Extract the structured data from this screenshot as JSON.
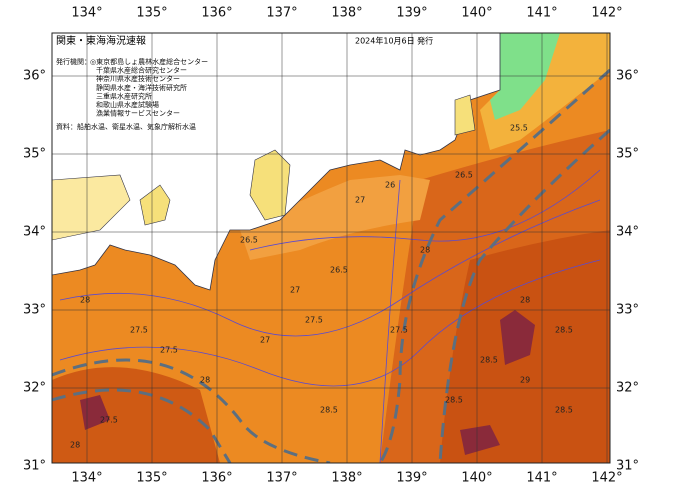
{
  "header": {
    "title": "関東・東海海況速報",
    "date": "2024年10月6日 発行"
  },
  "issuers": {
    "label": "発行機関：",
    "names": [
      "◎東京都島しょ農林水産総合センター",
      "千葉県水産総合研究センター",
      "神奈川県水産技術センター",
      "静岡県水産・海洋技術研究所",
      "三重県水産研究所",
      "和歌山県水産試験場",
      "漁業情報サービスセンター"
    ]
  },
  "sources": "資料：船舶水温、衛星水温、気象庁解析水温",
  "lon_labels": [
    "134°",
    "135°",
    "136°",
    "137°",
    "138°",
    "139°",
    "140°",
    "141°",
    "142°"
  ],
  "lat_labels": [
    "36°",
    "35°",
    "34°",
    "33°",
    "32°",
    "31°"
  ],
  "contour_labels": [
    "26.5",
    "27",
    "26.5",
    "27.5",
    "28",
    "27",
    "27.5",
    "28",
    "28.5",
    "28",
    "27.5",
    "28.5",
    "26.5",
    "27.5",
    "28",
    "28.5",
    "29",
    "28.5",
    "27",
    "26",
    "25.5",
    "28",
    "27.5",
    "28.5"
  ]
}
